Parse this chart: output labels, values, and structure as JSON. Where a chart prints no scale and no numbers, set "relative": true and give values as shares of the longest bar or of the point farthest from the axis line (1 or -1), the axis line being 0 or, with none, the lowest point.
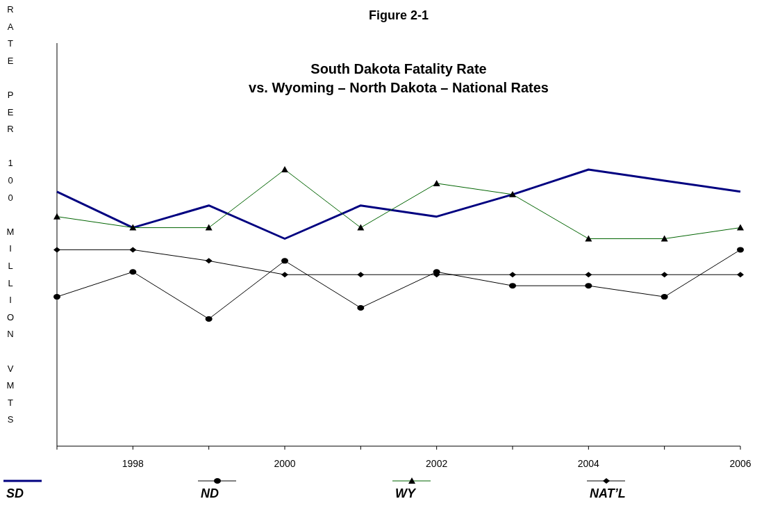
{
  "chart_data": {
    "type": "line",
    "title": "Figure 2-1",
    "subtitle": "South Dakota Fatality Rate\nvs. Wyoming – North Dakota – National Rates",
    "ylabel": "RATE PER 100 MILLION VMTS",
    "relative": true,
    "legend": "bottom",
    "categories": [
      null,
      "1998",
      null,
      "2000",
      null,
      "2002",
      null,
      "2004",
      null,
      "2006"
    ],
    "series": [
      {
        "name": "SD",
        "color": "#000080",
        "marker": "none",
        "values": [
          0.92,
          0.79,
          0.87,
          0.75,
          0.87,
          0.83,
          0.91,
          1,
          0.96,
          0.92
        ]
      },
      {
        "name": "ND",
        "color": "#000000",
        "marker": "circle",
        "values": [
          0.54,
          0.63,
          0.46,
          0.67,
          0.5,
          0.63,
          0.58,
          0.58,
          0.54,
          0.71
        ]
      },
      {
        "name": "WY",
        "color": "#006400",
        "marker": "triangle",
        "values": [
          0.83,
          0.79,
          0.79,
          1,
          0.79,
          0.95,
          0.91,
          0.75,
          0.75,
          0.79
        ]
      },
      {
        "name": "NAT’L",
        "color": "#000000",
        "marker": "diamond",
        "values": [
          0.71,
          0.71,
          0.67,
          0.62,
          0.62,
          0.62,
          0.62,
          0.62,
          0.62,
          0.62
        ]
      }
    ]
  }
}
